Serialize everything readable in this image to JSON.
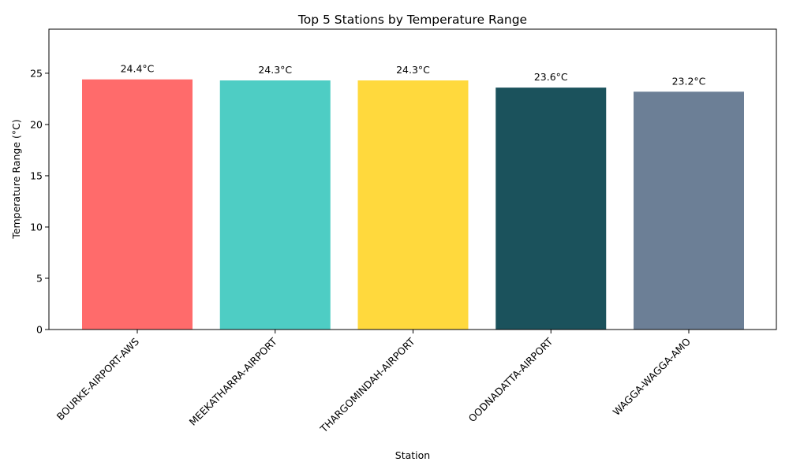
{
  "chart_data": {
    "type": "bar",
    "title": "Top 5 Stations by Temperature Range",
    "xlabel": "Station",
    "ylabel": "Temperature Range (°C)",
    "categories": [
      "BOURKE-AIRPORT-AWS",
      "MEEKATHARRA-AIRPORT",
      "THARGOMINDAH-AIRPORT",
      "OODNADATTA-AIRPORT",
      "WAGGA-WAGGA-AMO"
    ],
    "values": [
      24.4,
      24.3,
      24.3,
      23.6,
      23.2
    ],
    "data_labels": [
      "24.4°C",
      "24.3°C",
      "24.3°C",
      "23.6°C",
      "23.2°C"
    ],
    "colors": [
      "#ff6b6b",
      "#4ecdc4",
      "#ffd93d",
      "#1b525c",
      "#6c7f96"
    ],
    "yticks": [
      0,
      5,
      10,
      15,
      20,
      25
    ],
    "ylim": [
      0,
      29.3
    ],
    "grid": false,
    "legend": "none"
  }
}
